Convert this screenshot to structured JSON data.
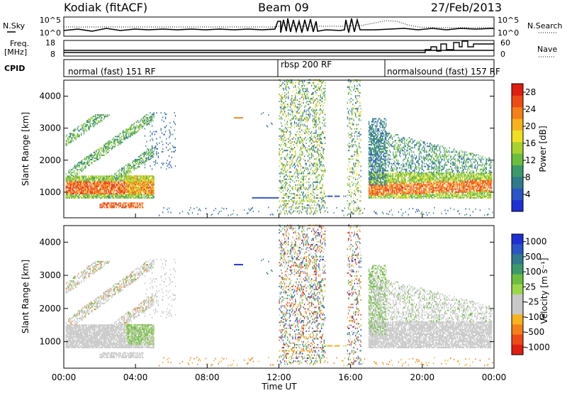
{
  "header": {
    "station": "Kodiak (fitACF)",
    "beam": "Beam 09",
    "date": "27/Feb/2013",
    "left_top_label": "N.Sky",
    "right_top_label": "N.Search",
    "freq_label_1": "Freq.",
    "freq_label_2": "[MHz]",
    "nave_label": "Nave",
    "cpid_label": "CPID"
  },
  "chart_data": [
    {
      "type": "line",
      "name": "noise-panel",
      "left_ticks": [
        "10^5",
        "10^0"
      ],
      "right_ticks": [
        "10^5",
        "10^0"
      ],
      "series_labels": [
        "N.Sky",
        "N.Search"
      ]
    },
    {
      "type": "line",
      "name": "freq-nave-panel",
      "left_ticks": [
        18,
        8
      ],
      "right_ticks": [
        60,
        0
      ],
      "ylim_freq": [
        8,
        18
      ],
      "ylim_nave": [
        0,
        60
      ]
    },
    {
      "type": "table",
      "name": "cpid-bar",
      "segments": [
        {
          "label": "normal (fast) 151 RF",
          "start_hour": 0,
          "end_hour": 12
        },
        {
          "label": "rbsp 200 RF",
          "start_hour": 12,
          "end_hour": 18
        },
        {
          "label": "normalsound (fast) 157 RF",
          "start_hour": 18,
          "end_hour": 24
        }
      ]
    },
    {
      "type": "heatmap",
      "name": "power-panel",
      "ylabel": "Slant Range [km]",
      "yticks": [
        1000,
        2000,
        3000,
        4000
      ],
      "ylim": [
        200,
        4500
      ],
      "xlim": [
        0,
        24
      ],
      "colorbar": {
        "label": "Power [dB]",
        "ticks": [
          4,
          8,
          12,
          16,
          20,
          24,
          28
        ],
        "colors": [
          "#1e2fd8",
          "#2a55c8",
          "#2f7a8c",
          "#3a9a6a",
          "#6cbf3c",
          "#a8d22c",
          "#f0e020",
          "#f7b21c",
          "#f57f18",
          "#ef4a14",
          "#e01e10"
        ],
        "range": [
          0,
          30
        ]
      }
    },
    {
      "type": "heatmap",
      "name": "velocity-panel",
      "ylabel": "Slant Range [km]",
      "yticks": [
        1000,
        2000,
        3000,
        4000
      ],
      "ylim": [
        200,
        4500
      ],
      "xlim": [
        0,
        24
      ],
      "xticks": [
        "00:00",
        "04:00",
        "08:00",
        "12:00",
        "16:00",
        "20:00",
        "00:00"
      ],
      "xlabel": "Time UT",
      "colorbar": {
        "label": "Velocity [m s⁻¹]",
        "ticks": [
          "1000",
          "500",
          "100",
          "25",
          "-25",
          "-100",
          "-500",
          "-1000"
        ],
        "colors": [
          "#1e2fd8",
          "#2a55c8",
          "#2f7a8c",
          "#3a9a6a",
          "#6cbf3c",
          "#9ad84a",
          "#c8c8c8",
          "#c8c8c8",
          "#f7b21c",
          "#f57f18",
          "#ef4a14",
          "#e01e10"
        ]
      }
    }
  ]
}
